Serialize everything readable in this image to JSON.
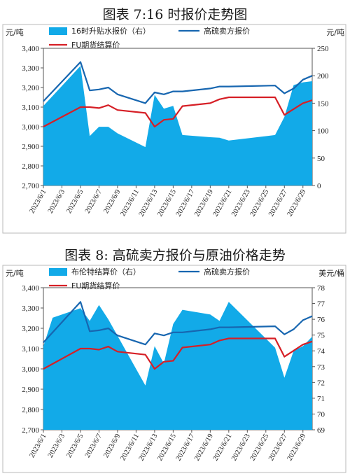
{
  "chart_data": [
    {
      "type": "line",
      "title": "图表 7:16 时报价走势图",
      "left_unit": "元/吨",
      "right_unit": "元/吨",
      "ylim": [
        2700,
        3400
      ],
      "y2lim": [
        0,
        250
      ],
      "yticks": [
        "3,400",
        "3,300",
        "3,200",
        "3,100",
        "3,000",
        "2,900",
        "2,800",
        "2,700"
      ],
      "y2ticks": [
        "250",
        "200",
        "150",
        "100",
        "50",
        "0"
      ],
      "xticklabels": [
        "2023/6/1",
        "2023/6/3",
        "2023/6/5",
        "2023/6/7",
        "2023/6/9",
        "2023/6/11",
        "2023/6/13",
        "2023/6/15",
        "2023/6/17",
        "2023/6/19",
        "2023/6/21",
        "2023/6/23",
        "2023/6/25",
        "2023/6/27",
        "2023/6/29"
      ],
      "legend": [
        "16时升贴水报价（右）",
        "高硫卖方报价",
        "FU期货结算价"
      ],
      "series": [
        {
          "name": "16时升贴水报价（右）",
          "type": "area",
          "axis": "right",
          "color": "#12aae8",
          "x": [
            "2023/6/1",
            "2023/6/5",
            "2023/6/6",
            "2023/6/7",
            "2023/6/8",
            "2023/6/9",
            "2023/6/12",
            "2023/6/13",
            "2023/6/14",
            "2023/6/15",
            "2023/6/16",
            "2023/6/19",
            "2023/6/20",
            "2023/6/21",
            "2023/6/26",
            "2023/6/27",
            "2023/6/28",
            "2023/6/29",
            "2023/6/30"
          ],
          "values": [
            145,
            218,
            90,
            107,
            107,
            95,
            70,
            165,
            140,
            145,
            92,
            88,
            87,
            82,
            92,
            125,
            183,
            188,
            190
          ]
        },
        {
          "name": "高硫卖方报价",
          "type": "line",
          "axis": "left",
          "color": "#1766b0",
          "x": [
            "2023/6/1",
            "2023/6/5",
            "2023/6/6",
            "2023/6/7",
            "2023/6/8",
            "2023/6/9",
            "2023/6/12",
            "2023/6/13",
            "2023/6/14",
            "2023/6/15",
            "2023/6/16",
            "2023/6/19",
            "2023/6/20",
            "2023/6/21",
            "2023/6/26",
            "2023/6/27",
            "2023/6/28",
            "2023/6/29",
            "2023/6/30"
          ],
          "values": [
            3130,
            3330,
            3185,
            3190,
            3200,
            3165,
            3120,
            3175,
            3165,
            3180,
            3180,
            3195,
            3205,
            3205,
            3210,
            3170,
            3195,
            3240,
            3260
          ]
        },
        {
          "name": "FU期货结算价",
          "type": "line",
          "axis": "left",
          "color": "#d61f26",
          "x": [
            "2023/6/1",
            "2023/6/5",
            "2023/6/6",
            "2023/6/7",
            "2023/6/8",
            "2023/6/9",
            "2023/6/12",
            "2023/6/13",
            "2023/6/14",
            "2023/6/15",
            "2023/6/16",
            "2023/6/19",
            "2023/6/20",
            "2023/6/21",
            "2023/6/26",
            "2023/6/27",
            "2023/6/28",
            "2023/6/29",
            "2023/6/30"
          ],
          "values": [
            3000,
            3100,
            3100,
            3095,
            3110,
            3085,
            3070,
            3000,
            3035,
            3040,
            3105,
            3120,
            3140,
            3150,
            3150,
            3060,
            3090,
            3120,
            3135
          ]
        }
      ]
    },
    {
      "type": "line",
      "title": "图表 8:  高硫卖方报价与原油价格走势",
      "left_unit": "元/吨",
      "right_unit": "美元/桶",
      "ylim": [
        2700,
        3400
      ],
      "y2lim": [
        69,
        78
      ],
      "yticks": [
        "3,400",
        "3,300",
        "3,200",
        "3,100",
        "3,000",
        "2,900",
        "2,800",
        "2,700"
      ],
      "y2ticks": [
        "78",
        "77",
        "76",
        "75",
        "74",
        "73",
        "72",
        "71",
        "70",
        "69"
      ],
      "xticklabels": [
        "2023/6/1",
        "2023/6/3",
        "2023/6/5",
        "2023/6/7",
        "2023/6/9",
        "2023/6/11",
        "2023/6/13",
        "2023/6/15",
        "2023/6/17",
        "2023/6/19",
        "2023/6/21",
        "2023/6/23",
        "2023/6/25",
        "2023/6/27",
        "2023/6/29"
      ],
      "legend": [
        "布伦特结算价（右）",
        "高硫卖方报价",
        "FU期货结算价"
      ],
      "series": [
        {
          "name": "布伦特结算价（右）",
          "type": "area",
          "axis": "right",
          "color": "#12aae8",
          "x": [
            "2023/6/1",
            "2023/6/2",
            "2023/6/5",
            "2023/6/6",
            "2023/6/7",
            "2023/6/8",
            "2023/6/12",
            "2023/6/13",
            "2023/6/14",
            "2023/6/15",
            "2023/6/16",
            "2023/6/19",
            "2023/6/20",
            "2023/6/21",
            "2023/6/26",
            "2023/6/27",
            "2023/6/28",
            "2023/6/29",
            "2023/6/30"
          ],
          "values": [
            74.3,
            76.1,
            76.7,
            75.9,
            76.9,
            76.0,
            71.8,
            74.3,
            73.2,
            75.7,
            76.6,
            76.3,
            75.9,
            77.1,
            74.2,
            72.3,
            74.0,
            74.3,
            74.9
          ]
        },
        {
          "name": "高硫卖方报价",
          "type": "line",
          "axis": "left",
          "color": "#1766b0",
          "x": [
            "2023/6/1",
            "2023/6/5",
            "2023/6/6",
            "2023/6/7",
            "2023/6/8",
            "2023/6/9",
            "2023/6/12",
            "2023/6/13",
            "2023/6/14",
            "2023/6/15",
            "2023/6/16",
            "2023/6/19",
            "2023/6/20",
            "2023/6/21",
            "2023/6/26",
            "2023/6/27",
            "2023/6/28",
            "2023/6/29",
            "2023/6/30"
          ],
          "values": [
            3130,
            3330,
            3185,
            3190,
            3200,
            3165,
            3120,
            3175,
            3165,
            3180,
            3180,
            3195,
            3205,
            3205,
            3210,
            3170,
            3195,
            3240,
            3260
          ]
        },
        {
          "name": "FU期货结算价",
          "type": "line",
          "axis": "left",
          "color": "#d61f26",
          "x": [
            "2023/6/1",
            "2023/6/5",
            "2023/6/6",
            "2023/6/7",
            "2023/6/8",
            "2023/6/9",
            "2023/6/12",
            "2023/6/13",
            "2023/6/14",
            "2023/6/15",
            "2023/6/16",
            "2023/6/19",
            "2023/6/20",
            "2023/6/21",
            "2023/6/26",
            "2023/6/27",
            "2023/6/28",
            "2023/6/29",
            "2023/6/30"
          ],
          "values": [
            3000,
            3100,
            3100,
            3095,
            3110,
            3085,
            3070,
            3000,
            3035,
            3040,
            3105,
            3120,
            3140,
            3150,
            3150,
            3060,
            3090,
            3120,
            3135
          ]
        }
      ]
    }
  ]
}
